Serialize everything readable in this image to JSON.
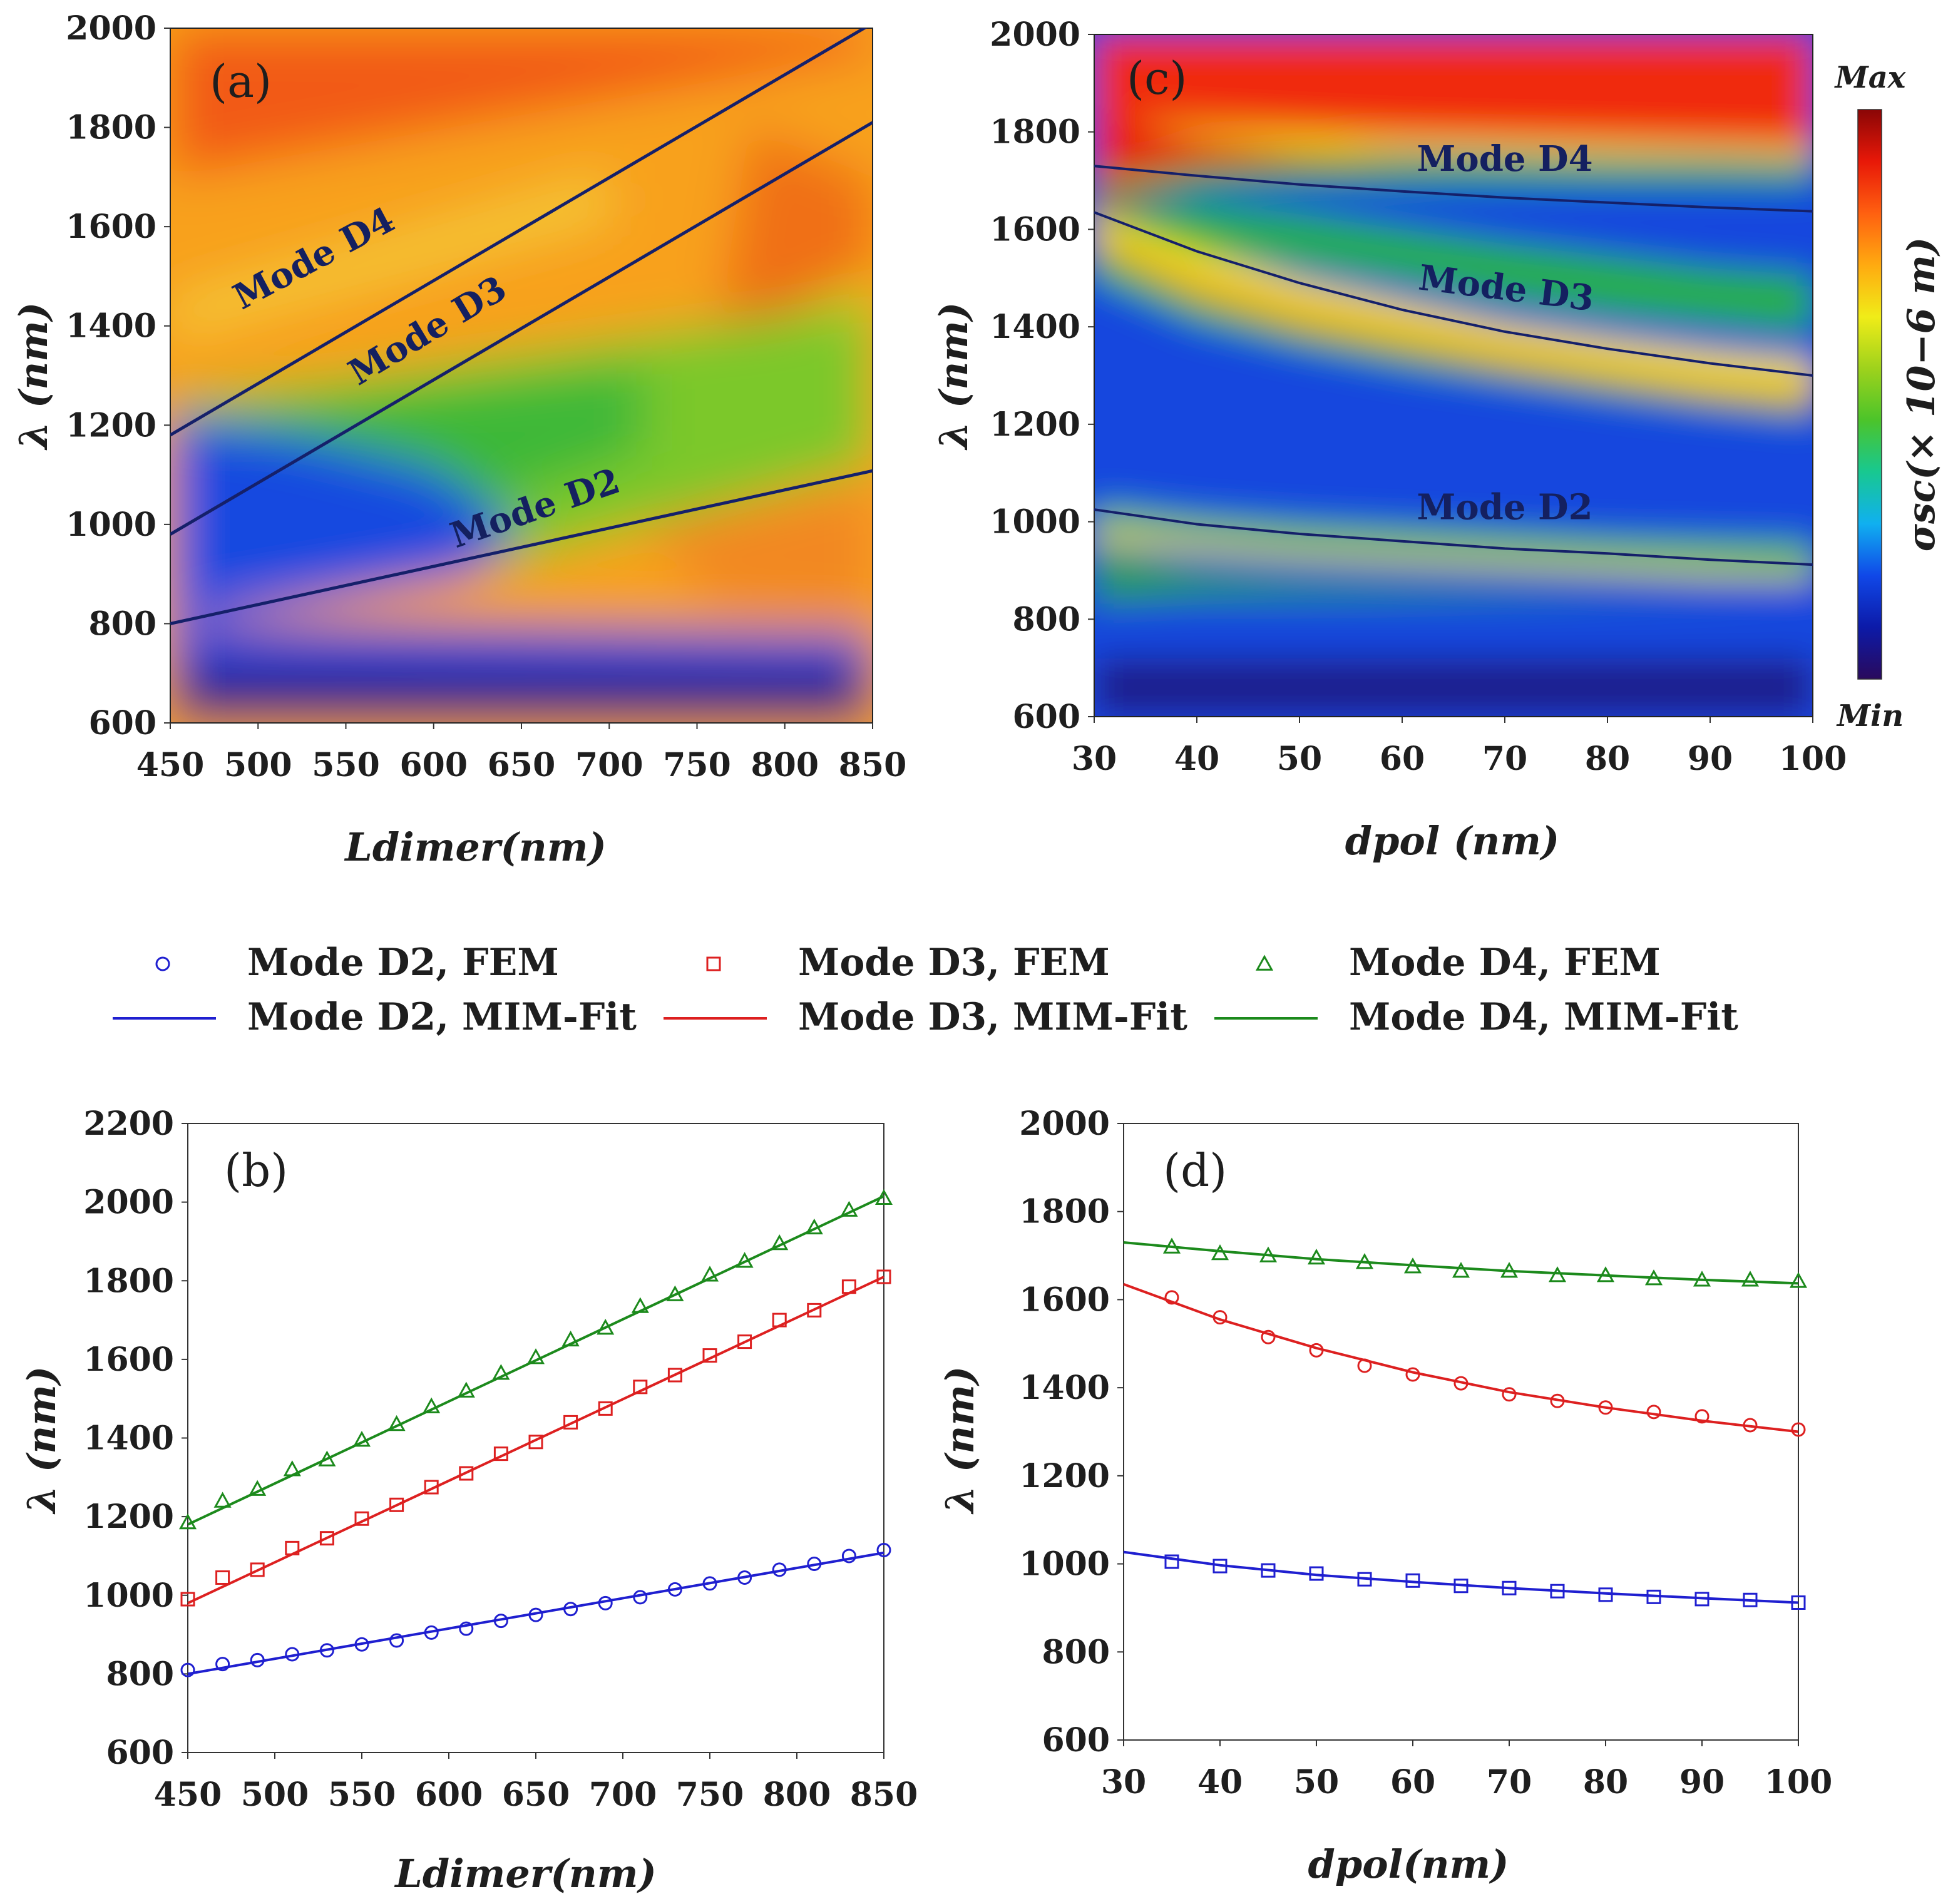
{
  "colors": {
    "d2": "#1f1fd0",
    "d3": "#dd2020",
    "d4": "#1c8a1c",
    "mode_line": "#15206a",
    "colormap": [
      "#2a0a5c",
      "#0c1aa8",
      "#1048e8",
      "#10b0f0",
      "#18c890",
      "#4cc42a",
      "#9ed21c",
      "#f0ec18",
      "#ffaa10",
      "#ff6010",
      "#e81808",
      "#8a0606"
    ]
  },
  "colorbar": {
    "max_label": "Max",
    "min_label": "Min",
    "label": "σsc(× 10−6 m)"
  },
  "legend": {
    "items": [
      {
        "label": "Mode D2, FEM",
        "series": "D2",
        "kind": "marker",
        "marker": "circle"
      },
      {
        "label": "Mode D3, FEM",
        "series": "D3",
        "kind": "marker",
        "marker": "square"
      },
      {
        "label": "Mode D4, FEM",
        "series": "D4",
        "kind": "marker",
        "marker": "triangle"
      },
      {
        "label": "Mode D2, MIM-Fit",
        "series": "D2",
        "kind": "line"
      },
      {
        "label": "Mode D3, MIM-Fit",
        "series": "D3",
        "kind": "line"
      },
      {
        "label": "Mode D4, MIM-Fit",
        "series": "D4",
        "kind": "line"
      }
    ]
  },
  "chart_data": [
    {
      "panel": "(a)",
      "type": "heatmap",
      "xlabel": "Ldimer(nm)",
      "ylabel": "λ (nm)",
      "xlim": [
        450,
        850
      ],
      "ylim": [
        600,
        2000
      ],
      "xticks": [
        450,
        500,
        550,
        600,
        650,
        700,
        750,
        800,
        850
      ],
      "yticks": [
        600,
        800,
        1000,
        1200,
        1400,
        1600,
        1800,
        2000
      ],
      "mode_lines": [
        {
          "name": "Mode D2",
          "x": [
            450,
            850
          ],
          "y": [
            800,
            1108
          ]
        },
        {
          "name": "Mode D3",
          "x": [
            450,
            850
          ],
          "y": [
            980,
            1810
          ]
        },
        {
          "name": "Mode D4",
          "x": [
            450,
            850
          ],
          "y": [
            1180,
            2010
          ]
        }
      ],
      "mode_labels": [
        {
          "text": "Mode D4",
          "x": 535,
          "y": 1515
        },
        {
          "text": "Mode D3",
          "x": 600,
          "y": 1370
        },
        {
          "text": "Mode D2",
          "x": 660,
          "y": 1010
        }
      ]
    },
    {
      "panel": "(c)",
      "type": "heatmap",
      "xlabel": "dpol (nm)",
      "ylabel": "λ (nm)",
      "xlim": [
        30,
        100
      ],
      "ylim": [
        600,
        2000
      ],
      "xticks": [
        30,
        40,
        50,
        60,
        70,
        80,
        90,
        100
      ],
      "yticks": [
        600,
        800,
        1000,
        1200,
        1400,
        1600,
        1800,
        2000
      ],
      "mode_lines": [
        {
          "name": "Mode D2",
          "x": [
            30,
            40,
            50,
            60,
            70,
            80,
            90,
            100
          ],
          "y": [
            1025,
            995,
            975,
            960,
            945,
            935,
            922,
            912
          ]
        },
        {
          "name": "Mode D3",
          "x": [
            30,
            40,
            50,
            60,
            70,
            80,
            90,
            100
          ],
          "y": [
            1635,
            1555,
            1490,
            1435,
            1390,
            1355,
            1325,
            1300
          ]
        },
        {
          "name": "Mode D4",
          "x": [
            30,
            40,
            50,
            60,
            70,
            80,
            90,
            100
          ],
          "y": [
            1730,
            1710,
            1692,
            1678,
            1665,
            1655,
            1645,
            1637
          ]
        }
      ],
      "mode_labels": [
        {
          "text": "Mode D4",
          "x": 70,
          "y": 1720
        },
        {
          "text": "Mode D3",
          "x": 70,
          "y": 1455
        },
        {
          "text": "Mode D2",
          "x": 70,
          "y": 1005
        }
      ]
    },
    {
      "panel": "(b)",
      "type": "scatter",
      "xlabel": "Ldimer(nm)",
      "ylabel": "λ (nm)",
      "xlim": [
        450,
        850
      ],
      "ylim": [
        600,
        2200
      ],
      "xticks": [
        450,
        500,
        550,
        600,
        650,
        700,
        750,
        800,
        850
      ],
      "yticks": [
        600,
        800,
        1000,
        1200,
        1400,
        1600,
        1800,
        2000,
        2200
      ],
      "series": [
        {
          "name": "Mode D2",
          "key": "D2",
          "marker": "circle",
          "x": [
            450,
            470,
            490,
            510,
            530,
            550,
            570,
            590,
            610,
            630,
            650,
            670,
            690,
            710,
            730,
            750,
            770,
            790,
            810,
            830,
            850
          ],
          "y": [
            810,
            825,
            835,
            850,
            860,
            875,
            885,
            905,
            915,
            935,
            950,
            965,
            980,
            995,
            1015,
            1030,
            1045,
            1065,
            1080,
            1100,
            1115
          ],
          "fit_x": [
            450,
            850
          ],
          "fit_y": [
            800,
            1108
          ]
        },
        {
          "name": "Mode D3",
          "key": "D3",
          "marker": "square",
          "x": [
            450,
            470,
            490,
            510,
            530,
            550,
            570,
            590,
            610,
            630,
            650,
            670,
            690,
            710,
            730,
            750,
            770,
            790,
            810,
            830,
            850
          ],
          "y": [
            990,
            1045,
            1065,
            1120,
            1145,
            1195,
            1230,
            1275,
            1310,
            1360,
            1390,
            1440,
            1475,
            1530,
            1560,
            1610,
            1645,
            1700,
            1725,
            1785,
            1810
          ],
          "fit_x": [
            450,
            850
          ],
          "fit_y": [
            980,
            1810
          ]
        },
        {
          "name": "Mode D4",
          "key": "D4",
          "marker": "triangle",
          "x": [
            450,
            470,
            490,
            510,
            530,
            550,
            570,
            590,
            610,
            630,
            650,
            670,
            690,
            710,
            730,
            750,
            770,
            790,
            810,
            830,
            850
          ],
          "y": [
            1185,
            1240,
            1270,
            1320,
            1345,
            1395,
            1435,
            1480,
            1520,
            1565,
            1605,
            1650,
            1680,
            1735,
            1765,
            1815,
            1850,
            1895,
            1935,
            1980,
            2010
          ],
          "fit_x": [
            450,
            850
          ],
          "fit_y": [
            1180,
            2015
          ]
        }
      ]
    },
    {
      "panel": "(d)",
      "type": "scatter",
      "xlabel": "dpol(nm)",
      "ylabel": "λ (nm)",
      "xlim": [
        30,
        100
      ],
      "ylim": [
        600,
        2000
      ],
      "xticks": [
        30,
        40,
        50,
        60,
        70,
        80,
        90,
        100
      ],
      "yticks": [
        600,
        800,
        1000,
        1200,
        1400,
        1600,
        1800,
        2000
      ],
      "series": [
        {
          "name": "Mode D2",
          "key": "D2",
          "marker": "square",
          "x": [
            35,
            40,
            45,
            50,
            55,
            60,
            65,
            70,
            75,
            80,
            85,
            90,
            95,
            100
          ],
          "y": [
            1005,
            995,
            985,
            978,
            965,
            962,
            950,
            945,
            938,
            930,
            925,
            920,
            918,
            912
          ],
          "fit_x": [
            30,
            40,
            50,
            60,
            70,
            80,
            90,
            100
          ],
          "fit_y": [
            1027,
            997,
            975,
            959,
            945,
            933,
            922,
            912
          ]
        },
        {
          "name": "Mode D3",
          "key": "D3",
          "marker": "circle",
          "x": [
            35,
            40,
            45,
            50,
            55,
            60,
            65,
            70,
            75,
            80,
            85,
            90,
            95,
            100
          ],
          "y": [
            1605,
            1560,
            1515,
            1485,
            1450,
            1430,
            1410,
            1385,
            1370,
            1355,
            1345,
            1335,
            1315,
            1305
          ],
          "fit_x": [
            30,
            40,
            50,
            60,
            70,
            80,
            90,
            100
          ],
          "fit_y": [
            1635,
            1555,
            1490,
            1435,
            1390,
            1355,
            1325,
            1300
          ]
        },
        {
          "name": "Mode D4",
          "key": "D4",
          "marker": "triangle",
          "x": [
            35,
            40,
            45,
            50,
            55,
            60,
            65,
            70,
            75,
            80,
            85,
            90,
            95,
            100
          ],
          "y": [
            1720,
            1705,
            1700,
            1695,
            1685,
            1675,
            1665,
            1665,
            1655,
            1655,
            1648,
            1645,
            1645,
            1642
          ],
          "fit_x": [
            30,
            40,
            50,
            60,
            70,
            80,
            90,
            100
          ],
          "fit_y": [
            1730,
            1710,
            1692,
            1678,
            1665,
            1655,
            1645,
            1637
          ]
        }
      ]
    }
  ]
}
